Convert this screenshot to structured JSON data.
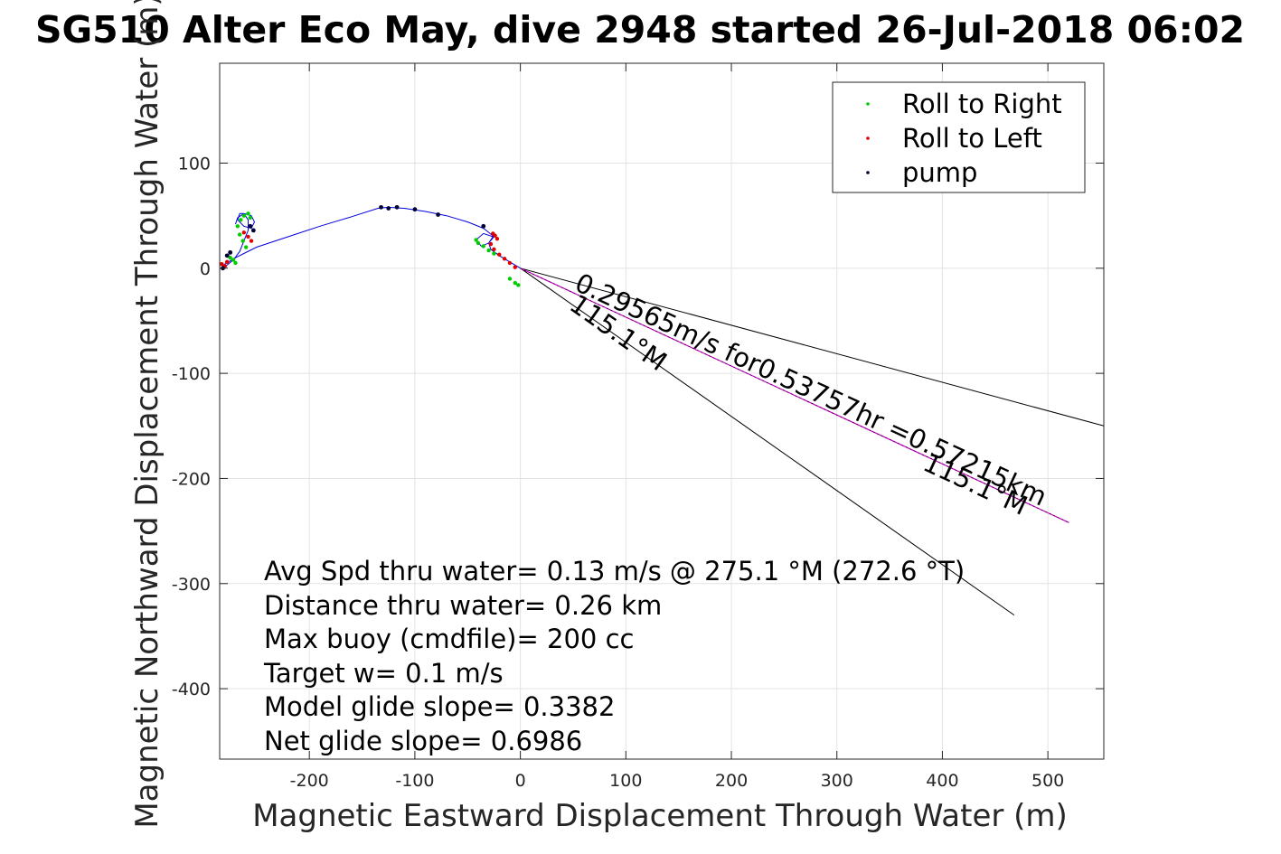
{
  "chart_data": {
    "type": "line",
    "title": "SG510 Alter Eco May, dive 2948 started 26-Jul-2018 06:02",
    "xlabel": "Magnetic Eastward Displacement Through Water (m)",
    "ylabel": "Magnetic Northward Displacement Through Water (m)",
    "xlim": [
      -285,
      553
    ],
    "ylim": [
      -467,
      195
    ],
    "xticks": [
      -200,
      -100,
      0,
      100,
      200,
      300,
      400,
      500
    ],
    "yticks": [
      100,
      0,
      -100,
      -200,
      -300,
      -400
    ],
    "grid": true,
    "legend_position": "top-right",
    "legend": [
      {
        "label": "Roll to Right",
        "color": "#00cc00"
      },
      {
        "label": "Roll to Left",
        "color": "#e00000"
      },
      {
        "label": "pump",
        "color": "#000033"
      }
    ],
    "track": {
      "color": "#0000dd",
      "x": [
        0,
        -10,
        -20,
        -28,
        -30,
        -26,
        -35,
        -42,
        -37,
        -30,
        -25,
        -35,
        -50,
        -70,
        -90,
        -110,
        -125,
        -135,
        -160,
        -190,
        -220,
        -250,
        -262,
        -270,
        -275,
        -280,
        -282,
        -278,
        -272,
        -266,
        -262,
        -258,
        -258,
        -262,
        -266,
        -268,
        -262,
        -255,
        -252,
        -255,
        -262,
        -268,
        -270
      ],
      "y": [
        0,
        6,
        12,
        18,
        24,
        30,
        33,
        27,
        21,
        24,
        30,
        38,
        44,
        50,
        54,
        57,
        58,
        57,
        49,
        40,
        30,
        20,
        14,
        10,
        7,
        4,
        2,
        3,
        8,
        16,
        26,
        36,
        46,
        52,
        52,
        46,
        40,
        38,
        44,
        50,
        52,
        48,
        42
      ]
    },
    "roll_right_points": {
      "x": [
        -25,
        -30,
        -35,
        -40,
        -42,
        -10,
        -5,
        -2,
        -260,
        -263,
        -266,
        -268,
        -265,
        -262,
        -258,
        -256,
        -270,
        -272,
        -275
      ],
      "y": [
        14,
        17,
        21,
        24,
        27,
        -10,
        -14,
        -16,
        20,
        26,
        32,
        40,
        46,
        50,
        52,
        48,
        5,
        8,
        10
      ]
    },
    "roll_left_points": {
      "x": [
        -5,
        -10,
        -15,
        -20,
        -25,
        -28,
        -22,
        -24,
        -26,
        -255,
        -258,
        -262,
        -280,
        -283,
        -278
      ],
      "y": [
        1,
        5,
        9,
        13,
        18,
        23,
        28,
        31,
        33,
        26,
        30,
        34,
        2,
        4,
        6
      ]
    },
    "pump_points": {
      "x": [
        -132,
        -125,
        -117,
        -100,
        -78,
        -35,
        -253,
        -256,
        -282,
        -278,
        -275
      ],
      "y": [
        58,
        57,
        58,
        56,
        51,
        40,
        36,
        40,
        0,
        12,
        15
      ]
    },
    "current_vector": {
      "color": "#cc00cc",
      "from": [
        0,
        0
      ],
      "to": [
        520,
        -242
      ],
      "label": "0.29565m/s for0.53757hr =0.57215km",
      "heading_label": "115.1°M"
    },
    "bounds_lines": [
      {
        "from": [
          0,
          0
        ],
        "to": [
          553,
          -150
        ]
      },
      {
        "from": [
          0,
          0
        ],
        "to": [
          468,
          -330
        ]
      }
    ],
    "lower_heading_label": "115.1°M",
    "notes": [
      "Avg Spd thru water=  0.13 m/s @ 275.1 °M (272.6 °T)",
      "Distance thru water=  0.26 km",
      "Max buoy (cmdfile)= 200 cc",
      "Target w= 0.1 m/s",
      "Model glide slope= 0.3382",
      "Net glide slope= 0.6986"
    ]
  }
}
